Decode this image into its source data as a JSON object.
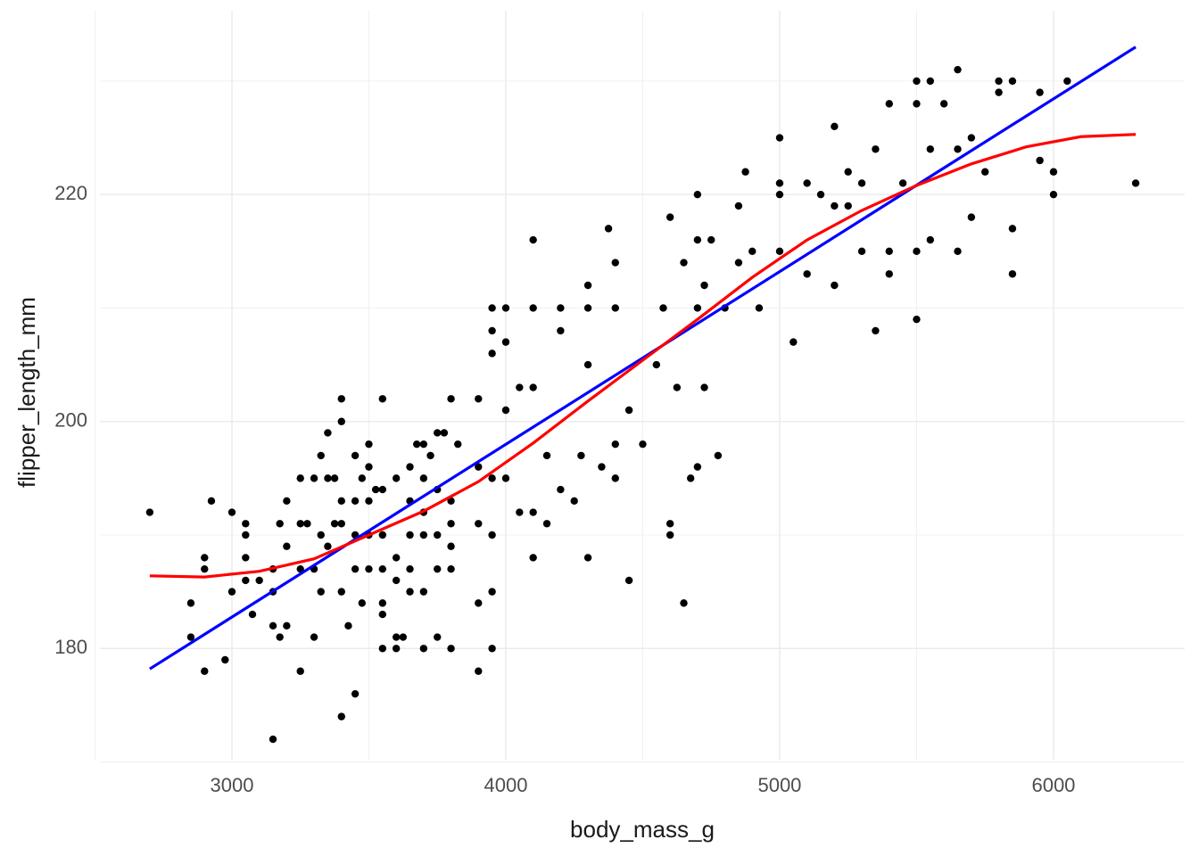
{
  "chart_data": {
    "type": "scatter",
    "x_label": "body_mass_g",
    "y_label": "flipper_length_mm",
    "color": "#000000",
    "grid": true,
    "xlim": [
      2518,
      6479
    ],
    "ylim": [
      170.2,
      236.2
    ],
    "xticks": [
      3000,
      4000,
      5000,
      6000
    ],
    "yticks": [
      180,
      200,
      220
    ],
    "minor_xticks": [
      2500,
      3500,
      4500,
      5500
    ],
    "minor_yticks": [
      170,
      190,
      210,
      230
    ],
    "x": [
      2700,
      2850,
      2850,
      2900,
      2900,
      2900,
      2925,
      2975,
      3000,
      3000,
      3050,
      3050,
      3050,
      3050,
      3075,
      3100,
      3150,
      3150,
      3150,
      3150,
      3175,
      3175,
      3200,
      3200,
      3200,
      3250,
      3250,
      3250,
      3250,
      3275,
      3300,
      3300,
      3300,
      3325,
      3325,
      3325,
      3350,
      3350,
      3350,
      3375,
      3375,
      3400,
      3400,
      3400,
      3400,
      3400,
      3400,
      3425,
      3450,
      3450,
      3450,
      3450,
      3450,
      3475,
      3475,
      3500,
      3500,
      3500,
      3500,
      3500,
      3525,
      3550,
      3550,
      3550,
      3550,
      3550,
      3550,
      3550,
      3600,
      3600,
      3600,
      3600,
      3600,
      3625,
      3650,
      3650,
      3650,
      3650,
      3650,
      3675,
      3700,
      3700,
      3700,
      3700,
      3700,
      3700,
      3725,
      3750,
      3750,
      3750,
      3750,
      3750,
      3775,
      3800,
      3800,
      3800,
      3800,
      3800,
      3800,
      3825,
      3900,
      3900,
      3900,
      3900,
      3900,
      3950,
      3950,
      3950,
      3950,
      3950,
      3950,
      3950,
      4000,
      4000,
      4000,
      4000,
      4050,
      4050,
      4100,
      4100,
      4100,
      4100,
      4100,
      4150,
      4150,
      4200,
      4200,
      4200,
      4250,
      4275,
      4300,
      4300,
      4300,
      4300,
      4350,
      4375,
      4400,
      4400,
      4400,
      4400,
      4450,
      4450,
      4500,
      4550,
      4575,
      4600,
      4600,
      4600,
      4625,
      4650,
      4650,
      4675,
      4700,
      4700,
      4700,
      4700,
      4725,
      4725,
      4750,
      4775,
      4800,
      4850,
      4850,
      4875,
      4900,
      4925,
      5000,
      5000,
      5000,
      5000,
      5050,
      5100,
      5100,
      5150,
      5200,
      5200,
      5200,
      5250,
      5250,
      5300,
      5300,
      5350,
      5350,
      5400,
      5400,
      5400,
      5450,
      5500,
      5500,
      5500,
      5500,
      5550,
      5550,
      5550,
      5600,
      5650,
      5650,
      5650,
      5700,
      5700,
      5750,
      5800,
      5800,
      5850,
      5850,
      5850,
      5950,
      5950,
      6000,
      6000,
      6050,
      6300
    ],
    "values": [
      192,
      184,
      181,
      188,
      187,
      178,
      193,
      179,
      192,
      185,
      191,
      190,
      188,
      186,
      183,
      186,
      187,
      185,
      182,
      172,
      191,
      181,
      193,
      189,
      182,
      195,
      191,
      187,
      178,
      191,
      195,
      187,
      181,
      197,
      190,
      185,
      199,
      195,
      189,
      195,
      191,
      202,
      200,
      193,
      191,
      185,
      174,
      182,
      197,
      193,
      190,
      187,
      176,
      195,
      184,
      198,
      196,
      193,
      190,
      187,
      194,
      202,
      194,
      190,
      187,
      184,
      183,
      180,
      195,
      188,
      186,
      181,
      180,
      181,
      196,
      193,
      187,
      185,
      190,
      198,
      198,
      195,
      192,
      190,
      185,
      180,
      197,
      199,
      194,
      190,
      187,
      181,
      199,
      202,
      193,
      191,
      189,
      187,
      180,
      198,
      202,
      196,
      191,
      184,
      178,
      210,
      208,
      206,
      195,
      190,
      185,
      180,
      210,
      207,
      201,
      195,
      203,
      192,
      216,
      210,
      203,
      192,
      188,
      197,
      191,
      210,
      208,
      194,
      193,
      197,
      212,
      210,
      205,
      188,
      196,
      217,
      214,
      210,
      198,
      195,
      201,
      186,
      198,
      205,
      210,
      218,
      191,
      190,
      203,
      214,
      184,
      195,
      220,
      216,
      210,
      196,
      212,
      203,
      216,
      197,
      210,
      219,
      214,
      222,
      215,
      210,
      225,
      221,
      220,
      215,
      207,
      221,
      213,
      220,
      226,
      219,
      212,
      222,
      219,
      221,
      215,
      224,
      208,
      228,
      215,
      213,
      221,
      230,
      228,
      215,
      209,
      230,
      224,
      216,
      228,
      231,
      224,
      215,
      225,
      218,
      222,
      230,
      229,
      230,
      217,
      213,
      229,
      223,
      222,
      220,
      230,
      221
    ],
    "lines": [
      {
        "color": "#0000ff",
        "x": [
          2700,
          6300
        ],
        "values": [
          178.2,
          233.0
        ]
      },
      {
        "color": "#ff0000",
        "x": [
          2700,
          2900,
          3100,
          3300,
          3500,
          3700,
          3900,
          4100,
          4300,
          4500,
          4700,
          4900,
          5100,
          5300,
          5500,
          5700,
          5900,
          6100,
          6300
        ],
        "values": [
          186.4,
          186.3,
          186.8,
          187.9,
          190.0,
          192.1,
          194.7,
          198.1,
          201.8,
          205.4,
          209.0,
          212.7,
          216.0,
          218.6,
          220.8,
          222.7,
          224.2,
          225.1,
          225.3
        ]
      }
    ]
  }
}
